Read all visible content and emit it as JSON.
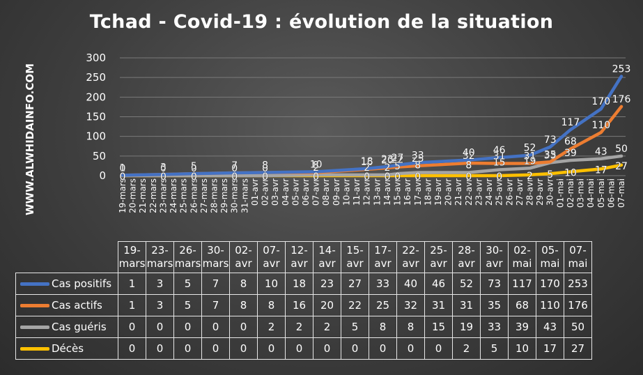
{
  "title": "Tchad - Covid-19 : évolution de la situation",
  "watermark": "WWW.ALWHIDAINFO.COM",
  "chart_data": {
    "type": "line",
    "title": "Tchad - Covid-19 : évolution de la situation",
    "ylim": [
      0,
      300
    ],
    "yticks": [
      0,
      50,
      100,
      150,
      200,
      250,
      300
    ],
    "grid": true,
    "legend_position": "table-below",
    "axis_ticks": [
      "19-mars",
      "20-mars",
      "21-mars",
      "22-mars",
      "23-mars",
      "24-mars",
      "25-mars",
      "26-mars",
      "27-mars",
      "28-mars",
      "29-mars",
      "30-mars",
      "31-mars",
      "01-avr",
      "02-avr",
      "03-avr",
      "04-avr",
      "05-avr",
      "06-avr",
      "07-avr",
      "08-avr",
      "09-avr",
      "10-avr",
      "11-avr",
      "12-avr",
      "13-avr",
      "14-avr",
      "15-avr",
      "16-avr",
      "17-avr",
      "18-avr",
      "19-avr",
      "20-avr",
      "21-avr",
      "22-avr",
      "23-avr",
      "24-avr",
      "25-avr",
      "26-avr",
      "27-avr",
      "28-avr",
      "29-avr",
      "30-avr",
      "01-mai",
      "02-mai",
      "03-mai",
      "04-mai",
      "05-mai",
      "06-mai",
      "07-mai"
    ],
    "categories": [
      "19-mars",
      "23-mars",
      "26-mars",
      "30-mars",
      "02-avr",
      "07-avr",
      "12-avr",
      "14-avr",
      "15-avr",
      "17-avr",
      "22-avr",
      "25-avr",
      "28-avr",
      "30-avr",
      "02-mai",
      "05-mai",
      "07-mai"
    ],
    "table_header": [
      [
        "19-",
        "mars"
      ],
      [
        "23-",
        "mars"
      ],
      [
        "26-",
        "mars"
      ],
      [
        "30-",
        "mars"
      ],
      [
        "02-",
        "avr"
      ],
      [
        "07-",
        "avr"
      ],
      [
        "12-",
        "avr"
      ],
      [
        "14-",
        "avr"
      ],
      [
        "15-",
        "avr"
      ],
      [
        "17-",
        "avr"
      ],
      [
        "22-",
        "avr"
      ],
      [
        "25-",
        "avr"
      ],
      [
        "28-",
        "avr"
      ],
      [
        "30-",
        "avr"
      ],
      [
        "02-",
        "mai"
      ],
      [
        "05-",
        "mai"
      ],
      [
        "07-",
        "mai"
      ]
    ],
    "series": [
      {
        "name": "Cas positifs",
        "color": "#4472C4",
        "values": [
          1,
          3,
          5,
          7,
          8,
          10,
          18,
          23,
          27,
          33,
          40,
          46,
          52,
          73,
          117,
          170,
          253
        ]
      },
      {
        "name": "Cas actifs",
        "color": "#ED7D31",
        "values": [
          1,
          3,
          5,
          7,
          8,
          8,
          16,
          20,
          22,
          25,
          32,
          31,
          31,
          35,
          68,
          110,
          176
        ]
      },
      {
        "name": "Cas guéris",
        "color": "#A5A5A5",
        "values": [
          0,
          0,
          0,
          0,
          0,
          2,
          2,
          2,
          5,
          8,
          8,
          15,
          19,
          33,
          39,
          43,
          50
        ]
      },
      {
        "name": "Décès",
        "color": "#FFC000",
        "values": [
          0,
          0,
          0,
          0,
          0,
          0,
          0,
          0,
          0,
          0,
          0,
          0,
          2,
          5,
          10,
          17,
          27
        ]
      }
    ]
  }
}
